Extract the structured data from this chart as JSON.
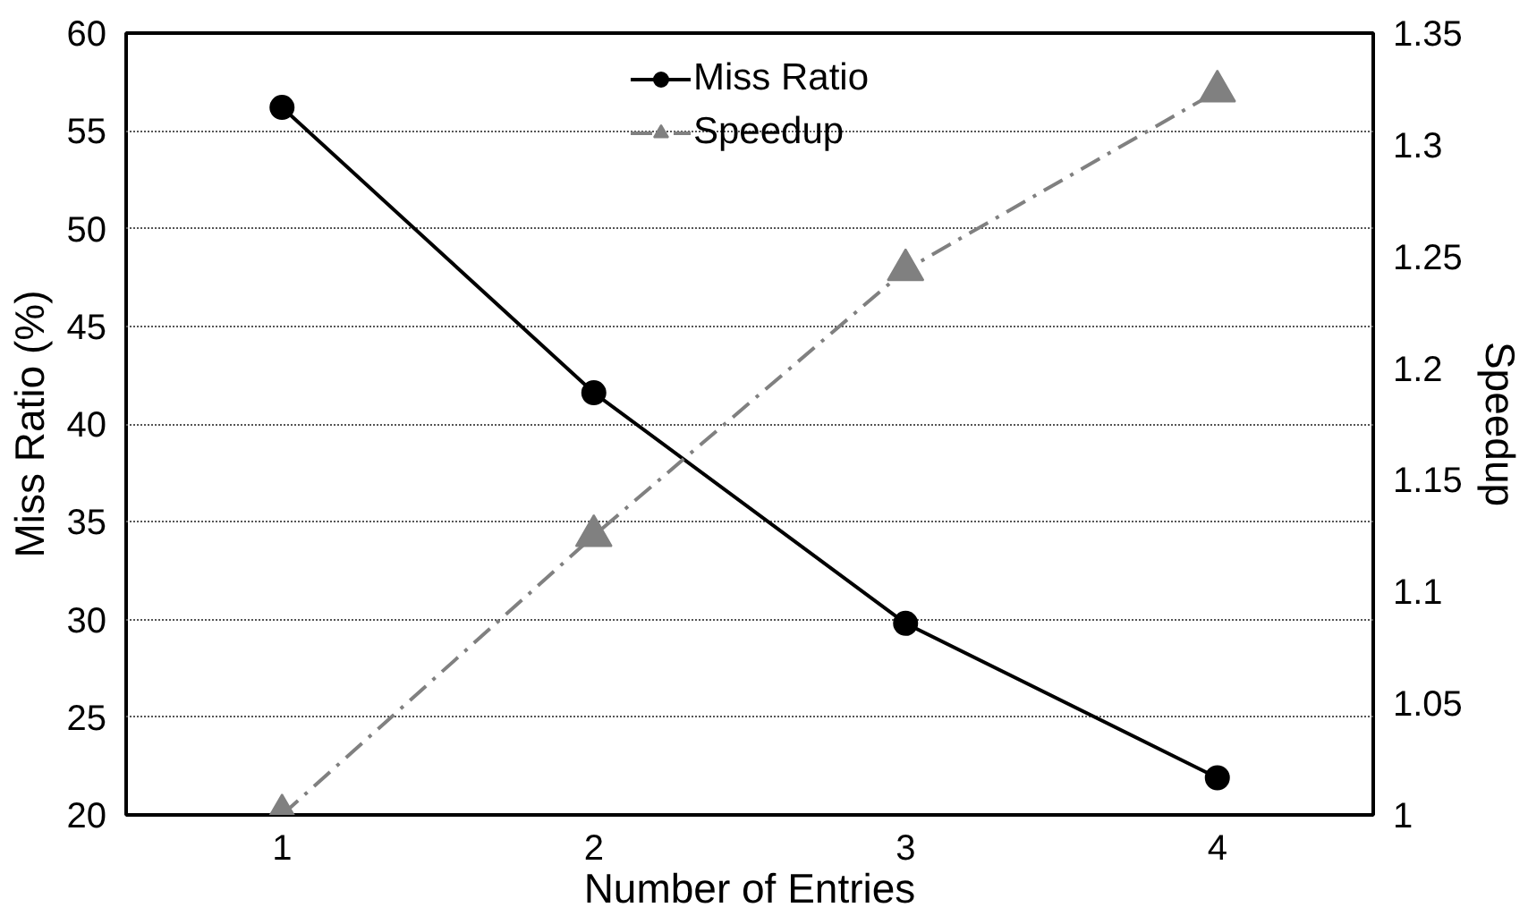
{
  "chart_data": {
    "type": "line",
    "xlabel": "Number of Entries",
    "ylabel": "Miss Ratio (%)",
    "y2label": "Speedup",
    "categories": [
      "1",
      "2",
      "3",
      "4"
    ],
    "ylim": [
      20,
      60
    ],
    "yticks": [
      20,
      25,
      30,
      35,
      40,
      45,
      50,
      55,
      60
    ],
    "y2lim": [
      1,
      1.35
    ],
    "y2ticks": [
      {
        "value": 1,
        "label": "1"
      },
      {
        "value": 1.05,
        "label": "1.05"
      },
      {
        "value": 1.1,
        "label": "1.1"
      },
      {
        "value": 1.15,
        "label": "1.15"
      },
      {
        "value": 1.2,
        "label": "1.2"
      },
      {
        "value": 1.25,
        "label": "1.25"
      },
      {
        "value": 1.3,
        "label": "1.3"
      },
      {
        "value": 1.35,
        "label": "1.35"
      }
    ],
    "grid": "y",
    "legend": "top",
    "series": [
      {
        "name": "Miss Ratio",
        "color": "#000000",
        "marker": "circle",
        "line_style": "solid",
        "values": [
          56.2,
          41.6,
          29.8,
          21.9
        ]
      },
      {
        "name": "Speedup",
        "color": "#808080",
        "marker": "triangle",
        "line_style": "dashdot",
        "axis": "y2",
        "values": [
          1.0,
          1.125,
          1.244,
          1.324
        ]
      }
    ]
  }
}
